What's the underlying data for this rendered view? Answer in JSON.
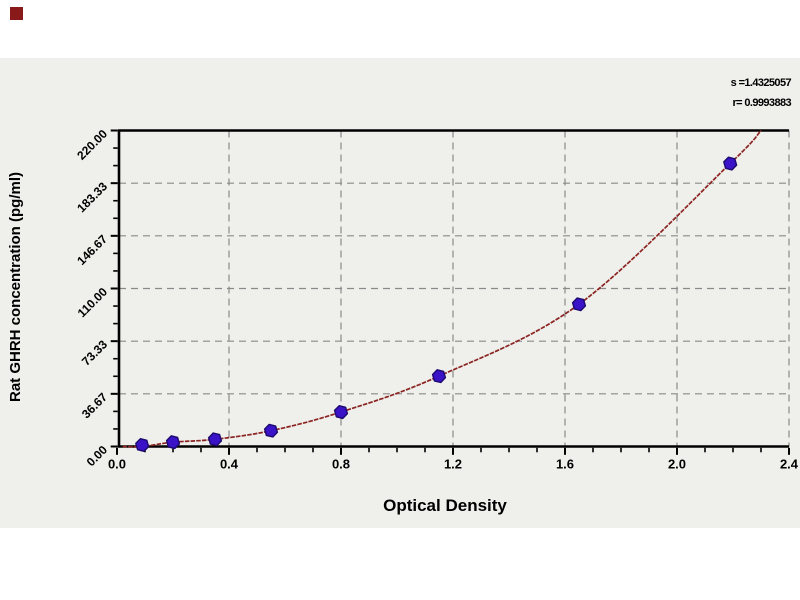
{
  "page": {
    "background": "#ffffff",
    "panel_background": "#efefec"
  },
  "decor": {
    "corner_square_color": "#8a1a1a"
  },
  "annotations": {
    "s_label": "s =1.4325057",
    "r_label": "r= 0.9993883"
  },
  "chart_data": {
    "type": "scatter",
    "title": "",
    "xlabel": "Optical Density",
    "ylabel": "Rat GHRH concentration (pg/ml)",
    "xlim": [
      0,
      2.4
    ],
    "ylim": [
      0,
      220
    ],
    "x_ticks": [
      0.0,
      0.4,
      0.8,
      1.2,
      1.6,
      2.0,
      2.4
    ],
    "x_tick_labels": [
      "0.0",
      "0.4",
      "0.8",
      "1.2",
      "1.6",
      "2.0",
      "2.4"
    ],
    "y_ticks": [
      0,
      36.67,
      73.33,
      110,
      146.67,
      183.33,
      220
    ],
    "y_tick_labels": [
      "0.00",
      "36.67",
      "73.33",
      "110.00",
      "146.67",
      "183.33",
      "220.00"
    ],
    "x_minor_step": 0.1,
    "y_minor_divisions_per_major": 3,
    "grid": "dashed",
    "legend": "none",
    "points": [
      {
        "x": 0.09,
        "y": 0
      },
      {
        "x": 0.2,
        "y": 3
      },
      {
        "x": 0.35,
        "y": 5
      },
      {
        "x": 0.55,
        "y": 11
      },
      {
        "x": 0.8,
        "y": 24
      },
      {
        "x": 1.15,
        "y": 49
      },
      {
        "x": 1.65,
        "y": 99
      },
      {
        "x": 2.19,
        "y": 197
      }
    ],
    "curve_start": {
      "x": 0.02,
      "y": 0
    },
    "curve_end": {
      "x": 2.3,
      "y": 220
    },
    "colors": {
      "point_fill": "#3a12c8",
      "point_outline": "#1c0a6e",
      "curve": "#8b2420",
      "grid": "#8a8a8a",
      "axis": "#000000",
      "text": "#000000"
    }
  }
}
